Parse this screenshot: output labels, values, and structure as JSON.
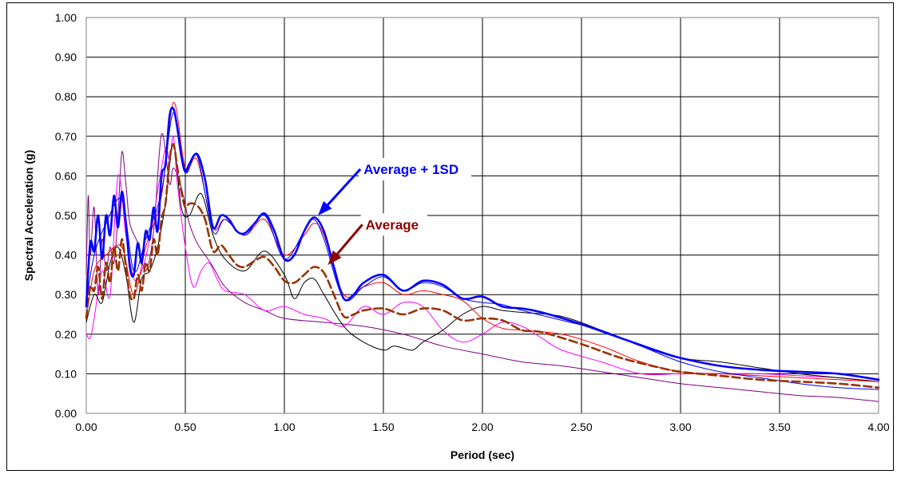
{
  "chart_data": {
    "type": "line",
    "xlabel": "Period (sec)",
    "ylabel": "Spectral Acceleration (g)",
    "xlim": [
      0,
      4
    ],
    "ylim": [
      0,
      1
    ],
    "x_ticks": [
      "0.00",
      "0.50",
      "1.00",
      "1.50",
      "2.00",
      "2.50",
      "3.00",
      "3.50",
      "4.00"
    ],
    "y_ticks": [
      "0.00",
      "0.10",
      "0.20",
      "0.30",
      "0.40",
      "0.50",
      "0.60",
      "0.70",
      "0.80",
      "0.90",
      "1.00"
    ],
    "grid": true,
    "annotations": [
      {
        "text": "Average + 1SD",
        "color": "#0000FF",
        "x": 1.4,
        "y": 0.605,
        "arrow_to": [
          1.17,
          0.5
        ]
      },
      {
        "text": "Average",
        "color": "#8B0000",
        "x": 1.41,
        "y": 0.465,
        "arrow_to": [
          1.22,
          0.375
        ]
      }
    ],
    "series": [
      {
        "style": {
          "color": "#0000FF",
          "width": 2.6,
          "dash": ""
        },
        "x": [
          0.0,
          0.02,
          0.04,
          0.06,
          0.08,
          0.1,
          0.12,
          0.14,
          0.16,
          0.18,
          0.2,
          0.22,
          0.24,
          0.26,
          0.28,
          0.3,
          0.32,
          0.34,
          0.36,
          0.38,
          0.4,
          0.42,
          0.44,
          0.46,
          0.48,
          0.5,
          0.52,
          0.56,
          0.6,
          0.64,
          0.68,
          0.72,
          0.76,
          0.8,
          0.85,
          0.9,
          0.95,
          1.0,
          1.05,
          1.1,
          1.15,
          1.2,
          1.25,
          1.3,
          1.35,
          1.4,
          1.5,
          1.6,
          1.7,
          1.8,
          1.9,
          2.0,
          2.1,
          2.2,
          2.3,
          2.5,
          2.7,
          2.9,
          3.0,
          3.2,
          3.4,
          3.6,
          3.8,
          4.0
        ],
        "y": [
          0.27,
          0.43,
          0.41,
          0.5,
          0.39,
          0.5,
          0.45,
          0.55,
          0.47,
          0.56,
          0.48,
          0.37,
          0.35,
          0.43,
          0.38,
          0.46,
          0.44,
          0.52,
          0.46,
          0.6,
          0.63,
          0.75,
          0.77,
          0.72,
          0.65,
          0.61,
          0.63,
          0.655,
          0.59,
          0.47,
          0.5,
          0.49,
          0.46,
          0.455,
          0.48,
          0.505,
          0.46,
          0.39,
          0.4,
          0.46,
          0.495,
          0.46,
          0.37,
          0.29,
          0.3,
          0.33,
          0.35,
          0.31,
          0.335,
          0.325,
          0.29,
          0.295,
          0.27,
          0.265,
          0.255,
          0.225,
          0.19,
          0.155,
          0.14,
          0.12,
          0.11,
          0.105,
          0.1,
          0.085
        ]
      },
      {
        "style": {
          "color": "#0000FF",
          "width": 1.0,
          "dash": ""
        },
        "x": [
          0.0,
          0.04,
          0.1,
          0.18,
          0.24,
          0.3,
          0.38,
          0.44,
          0.5,
          0.56,
          0.64,
          0.7,
          0.8,
          0.9,
          1.0,
          1.1,
          1.15,
          1.2,
          1.3,
          1.4,
          1.5,
          1.6,
          1.7,
          1.8,
          1.9,
          2.0,
          2.1,
          2.2,
          2.4,
          2.6,
          2.8,
          3.0,
          3.2,
          3.4,
          3.6,
          3.8,
          4.0
        ],
        "y": [
          0.28,
          0.4,
          0.48,
          0.54,
          0.36,
          0.44,
          0.56,
          0.76,
          0.61,
          0.65,
          0.46,
          0.49,
          0.45,
          0.5,
          0.39,
          0.46,
          0.49,
          0.44,
          0.29,
          0.32,
          0.345,
          0.31,
          0.33,
          0.32,
          0.29,
          0.28,
          0.275,
          0.26,
          0.235,
          0.21,
          0.17,
          0.13,
          0.105,
          0.09,
          0.075,
          0.065,
          0.06
        ]
      },
      {
        "style": {
          "color": "#FF0000",
          "width": 1.0,
          "dash": ""
        },
        "x": [
          0.0,
          0.04,
          0.1,
          0.18,
          0.24,
          0.3,
          0.38,
          0.44,
          0.5,
          0.56,
          0.64,
          0.7,
          0.8,
          0.9,
          1.0,
          1.1,
          1.15,
          1.2,
          1.3,
          1.4,
          1.5,
          1.6,
          1.7,
          1.8,
          1.9,
          2.0,
          2.1,
          2.2,
          2.4,
          2.6,
          2.8,
          3.0,
          3.2,
          3.4,
          3.6,
          3.8,
          4.0
        ],
        "y": [
          0.24,
          0.36,
          0.4,
          0.42,
          0.3,
          0.42,
          0.55,
          0.785,
          0.62,
          0.64,
          0.47,
          0.49,
          0.45,
          0.49,
          0.4,
          0.45,
          0.48,
          0.45,
          0.3,
          0.32,
          0.33,
          0.3,
          0.31,
          0.3,
          0.285,
          0.24,
          0.215,
          0.21,
          0.2,
          0.17,
          0.13,
          0.105,
          0.1,
          0.095,
          0.09,
          0.085,
          0.08
        ]
      },
      {
        "style": {
          "color": "#000000",
          "width": 1.0,
          "dash": ""
        },
        "x": [
          0.0,
          0.04,
          0.08,
          0.12,
          0.16,
          0.2,
          0.24,
          0.28,
          0.32,
          0.36,
          0.4,
          0.44,
          0.48,
          0.52,
          0.58,
          0.64,
          0.7,
          0.8,
          0.9,
          1.0,
          1.05,
          1.1,
          1.15,
          1.2,
          1.3,
          1.4,
          1.5,
          1.55,
          1.6,
          1.65,
          1.7,
          1.8,
          1.9,
          2.0,
          2.1,
          2.2,
          2.4,
          2.6,
          2.8,
          3.0,
          3.2,
          3.4,
          3.6,
          3.8,
          4.0
        ],
        "y": [
          0.23,
          0.3,
          0.28,
          0.38,
          0.42,
          0.35,
          0.23,
          0.34,
          0.36,
          0.42,
          0.53,
          0.68,
          0.52,
          0.5,
          0.555,
          0.45,
          0.39,
          0.36,
          0.41,
          0.35,
          0.29,
          0.33,
          0.34,
          0.3,
          0.22,
          0.18,
          0.16,
          0.17,
          0.165,
          0.16,
          0.18,
          0.21,
          0.25,
          0.27,
          0.26,
          0.255,
          0.245,
          0.21,
          0.17,
          0.14,
          0.13,
          0.115,
          0.1,
          0.09,
          0.08
        ]
      },
      {
        "style": {
          "color": "#FF00FF",
          "width": 1.0,
          "dash": ""
        },
        "x": [
          0.0,
          0.02,
          0.04,
          0.08,
          0.12,
          0.16,
          0.2,
          0.24,
          0.28,
          0.32,
          0.36,
          0.4,
          0.42,
          0.44,
          0.46,
          0.5,
          0.54,
          0.58,
          0.62,
          0.66,
          0.7,
          0.8,
          0.9,
          1.0,
          1.1,
          1.2,
          1.3,
          1.4,
          1.5,
          1.6,
          1.7,
          1.8,
          1.9,
          2.0,
          2.1,
          2.2,
          2.3,
          2.4,
          2.6,
          2.8,
          3.0,
          3.2,
          3.4,
          3.6,
          3.8,
          4.0
        ],
        "y": [
          0.2,
          0.19,
          0.24,
          0.36,
          0.3,
          0.6,
          0.45,
          0.34,
          0.36,
          0.44,
          0.56,
          0.67,
          0.64,
          0.7,
          0.58,
          0.42,
          0.32,
          0.36,
          0.38,
          0.34,
          0.31,
          0.3,
          0.26,
          0.27,
          0.25,
          0.24,
          0.22,
          0.27,
          0.25,
          0.28,
          0.27,
          0.21,
          0.18,
          0.2,
          0.23,
          0.22,
          0.19,
          0.16,
          0.13,
          0.1,
          0.1,
          0.1,
          0.1,
          0.095,
          0.09,
          0.08
        ]
      },
      {
        "style": {
          "color": "#800080",
          "width": 1.0,
          "dash": ""
        },
        "x": [
          0.0,
          0.01,
          0.02,
          0.04,
          0.06,
          0.08,
          0.1,
          0.12,
          0.14,
          0.16,
          0.18,
          0.2,
          0.22,
          0.26,
          0.3,
          0.34,
          0.38,
          0.42,
          0.44,
          0.48,
          0.52,
          0.56,
          0.6,
          0.64,
          0.7,
          0.8,
          0.9,
          1.0,
          1.2,
          1.4,
          1.6,
          1.8,
          2.0,
          2.2,
          2.4,
          2.6,
          2.8,
          3.0,
          3.2,
          3.4,
          3.6,
          3.8,
          4.0
        ],
        "y": [
          0.35,
          0.55,
          0.4,
          0.52,
          0.3,
          0.44,
          0.36,
          0.42,
          0.38,
          0.5,
          0.66,
          0.58,
          0.48,
          0.43,
          0.36,
          0.46,
          0.705,
          0.58,
          0.62,
          0.57,
          0.48,
          0.43,
          0.4,
          0.37,
          0.32,
          0.28,
          0.26,
          0.24,
          0.23,
          0.22,
          0.2,
          0.17,
          0.15,
          0.13,
          0.12,
          0.105,
          0.09,
          0.075,
          0.065,
          0.055,
          0.045,
          0.04,
          0.03
        ]
      },
      {
        "style": {
          "color": "#993300",
          "width": 2.6,
          "dash": "10,5"
        },
        "x": [
          0.0,
          0.02,
          0.04,
          0.06,
          0.08,
          0.1,
          0.12,
          0.14,
          0.16,
          0.18,
          0.2,
          0.22,
          0.24,
          0.26,
          0.28,
          0.3,
          0.32,
          0.34,
          0.36,
          0.38,
          0.4,
          0.42,
          0.44,
          0.46,
          0.48,
          0.5,
          0.52,
          0.56,
          0.6,
          0.64,
          0.68,
          0.72,
          0.76,
          0.8,
          0.85,
          0.9,
          0.95,
          1.0,
          1.05,
          1.1,
          1.15,
          1.2,
          1.25,
          1.3,
          1.35,
          1.4,
          1.5,
          1.6,
          1.7,
          1.8,
          1.9,
          2.0,
          2.1,
          2.2,
          2.3,
          2.5,
          2.7,
          2.9,
          3.0,
          3.2,
          3.4,
          3.6,
          3.8,
          4.0
        ],
        "y": [
          0.24,
          0.32,
          0.31,
          0.37,
          0.29,
          0.38,
          0.33,
          0.42,
          0.36,
          0.44,
          0.37,
          0.3,
          0.29,
          0.35,
          0.31,
          0.38,
          0.36,
          0.44,
          0.4,
          0.49,
          0.53,
          0.64,
          0.68,
          0.62,
          0.56,
          0.52,
          0.53,
          0.525,
          0.49,
          0.41,
          0.425,
          0.4,
          0.375,
          0.37,
          0.385,
          0.395,
          0.37,
          0.335,
          0.33,
          0.35,
          0.37,
          0.355,
          0.3,
          0.245,
          0.25,
          0.26,
          0.265,
          0.25,
          0.265,
          0.26,
          0.235,
          0.24,
          0.235,
          0.21,
          0.205,
          0.175,
          0.14,
          0.115,
          0.105,
          0.095,
          0.085,
          0.08,
          0.075,
          0.065
        ]
      }
    ]
  }
}
